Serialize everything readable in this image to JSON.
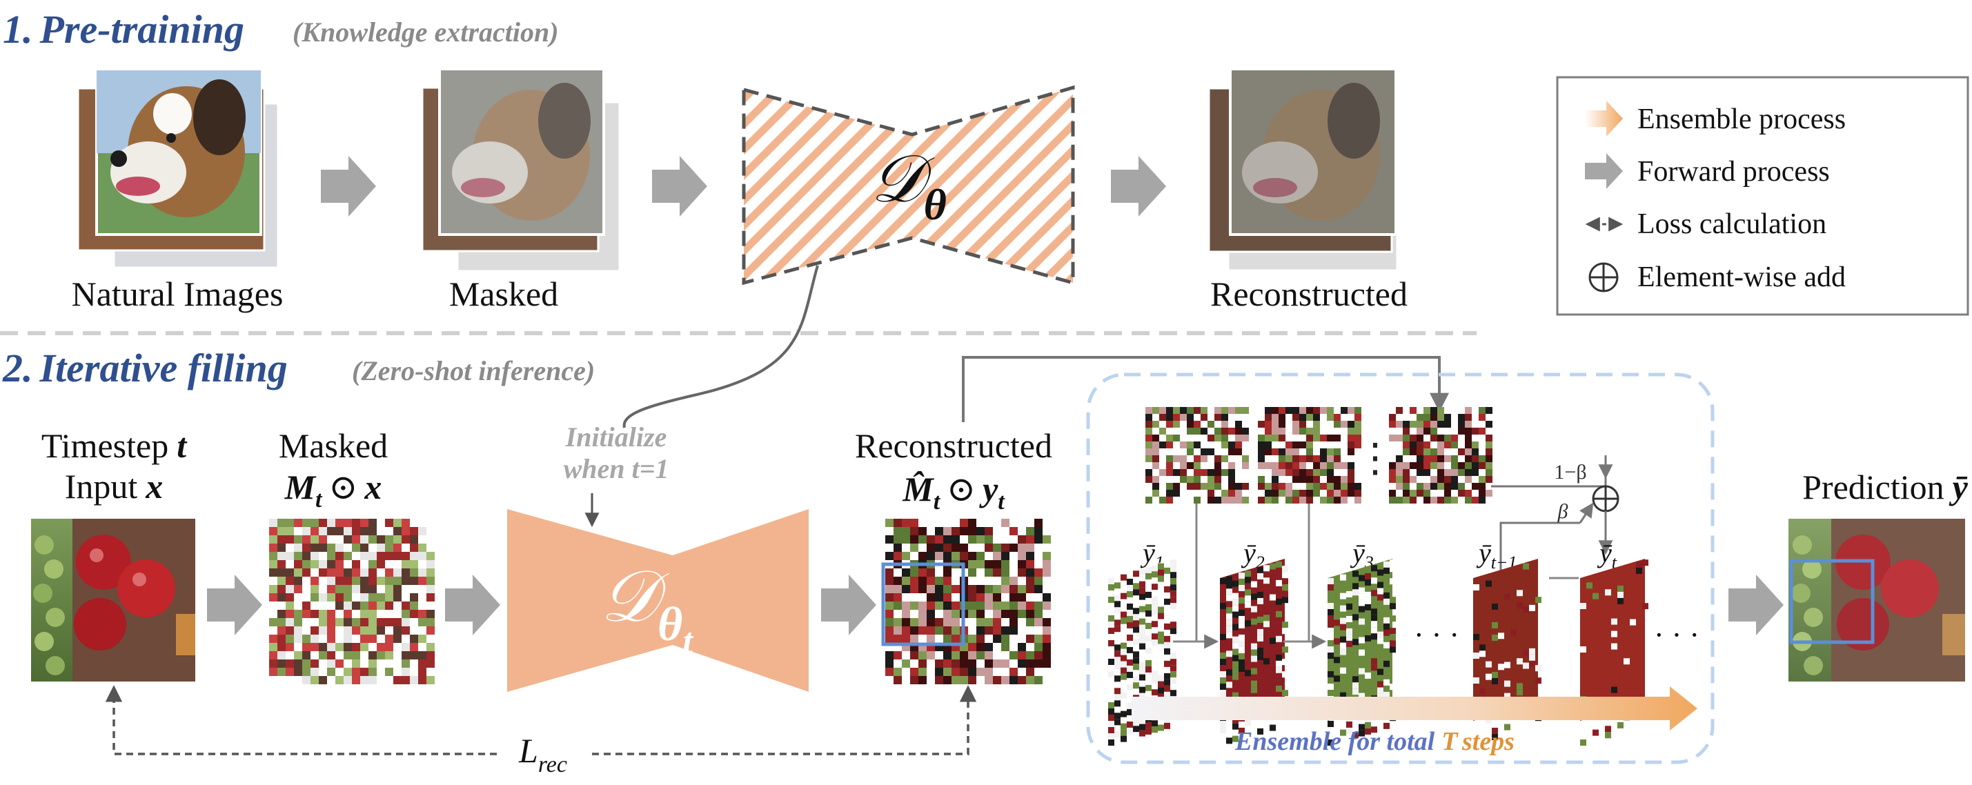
{
  "colors": {
    "section_title": "#2f4f8f",
    "subtitle_gray": "#8a8a8a",
    "decoder_fill": "#f2b48e",
    "hatch_orange": "#f2b48e",
    "arrow_gray": "#a6a6a6",
    "ensemble_box": "#bcd3ef",
    "highlight_box": "#5b8fd8",
    "ensemble_text_blue": "#5b73c4",
    "ensemble_text_orange": "#e0923a"
  },
  "section1": {
    "number": "1.",
    "title": "Pre-training",
    "subtitle": "(Knowledge extraction)",
    "labels": {
      "natural": "Natural Images",
      "masked": "Masked",
      "reconstructed": "Reconstructed"
    },
    "decoder_symbol": "𝒟",
    "decoder_sub": "θ"
  },
  "legend": {
    "items": [
      {
        "icon": "ensemble-arrow-icon",
        "label": "Ensemble process"
      },
      {
        "icon": "forward-arrow-icon",
        "label": "Forward process"
      },
      {
        "icon": "double-headed-arrow-icon",
        "label": "Loss calculation"
      },
      {
        "icon": "circled-plus-icon",
        "label": "Element-wise add"
      }
    ]
  },
  "section2": {
    "number": "2.",
    "title": "Iterative filling",
    "subtitle": "(Zero-shot inference)",
    "timestep_label": "Timestep",
    "timestep_var": "t",
    "input_label": "Input",
    "input_var": "x",
    "masked_label": "Masked",
    "masked_formula_m": "M",
    "masked_formula_sub": "t",
    "masked_formula_op": "⊙",
    "masked_formula_x": "x",
    "init_line1": "Initialize",
    "init_line2": "when t=1",
    "decoder_symbol": "𝒟",
    "decoder_sub": "θ",
    "decoder_subsub": "t",
    "reconstructed_label": "Reconstructed",
    "recon_formula_m": "M̂",
    "recon_formula_sub": "t",
    "recon_formula_op": "⊙",
    "recon_formula_y": "y",
    "recon_formula_ysub": "t",
    "prediction_label": "Prediction",
    "prediction_var": "ȳ",
    "loss_symbol": "L",
    "loss_sub": "rec",
    "one_minus_beta": "1−β",
    "beta": "β",
    "ellipsis": "⋮",
    "dots": "· · ·",
    "ybar_labels": [
      {
        "base": "ȳ",
        "sub": "1"
      },
      {
        "base": "ȳ",
        "sub": "2"
      },
      {
        "base": "ȳ",
        "sub": "3"
      },
      {
        "base": "ȳ",
        "sub": "t−1"
      },
      {
        "base": "ȳ",
        "sub": "t"
      }
    ],
    "ensemble_prefix": "Ensemble for total",
    "ensemble_T": "T",
    "ensemble_suffix": "steps"
  }
}
